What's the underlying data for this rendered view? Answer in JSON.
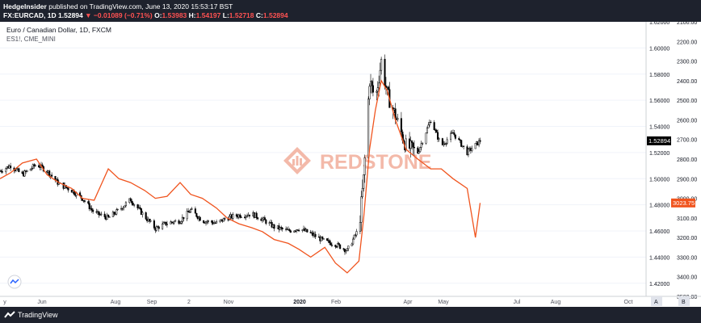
{
  "header": {
    "author": "HedgeInsider",
    "published_text": "published on TradingView.com, June 13, 2020 15:53:17 BST",
    "symbol": "FX:EURCAD, 1D",
    "last": "1.52894",
    "change_arrow": "▼",
    "change": "−0.01089 (−0.71%)",
    "open_label": "O:",
    "open": "1.53983",
    "high_label": "H:",
    "high": "1.54197",
    "low_label": "L:",
    "low": "1.52718",
    "close_label": "C:",
    "close": "1.52894"
  },
  "legend": {
    "title": "Euro / Canadian Dollar, 1D, FXCM",
    "compare": "ES1!, CME_MINI"
  },
  "watermark": {
    "text": "REDSTONE"
  },
  "footer": {
    "brand": "TradingView"
  },
  "colors": {
    "candle": "#000000",
    "compare_line": "#f0541e",
    "price_badge": "#000000",
    "compare_badge": "#f0541e",
    "header_bg": "#1e222d"
  },
  "chart_data": {
    "type": "line",
    "title": "Euro / Canadian Dollar, 1D, FXCM",
    "x_ticks": [
      "y",
      "Jun",
      "Aug",
      "Sep",
      "2",
      "Nov",
      "2020",
      "Feb",
      "Apr",
      "May",
      "Jul",
      "Aug",
      "Oct"
    ],
    "y_left_ticks": [
      "1.62000",
      "1.60000",
      "1.58000",
      "1.56000",
      "1.54000",
      "1.52000",
      "1.50000",
      "1.48000",
      "1.46000",
      "1.44000",
      "1.42000"
    ],
    "y_left_range": [
      1.41,
      1.62
    ],
    "y_right_ticks": [
      "2100.00",
      "2200.00",
      "2300.00",
      "2400.00",
      "2500.00",
      "2600.00",
      "2700.00",
      "2800.00",
      "2900.00",
      "3000.00",
      "3100.00",
      "3200.00",
      "3300.00",
      "3400.00",
      "3500.00"
    ],
    "y_right_range": [
      2100,
      3500
    ],
    "y_right_inverted": true,
    "price_label": "1.52894",
    "compare_label": "3023.75",
    "series": [
      {
        "name": "EURCAD",
        "kind": "candlestick-close",
        "x": [
          "2019-05-01",
          "2019-05-10",
          "2019-05-20",
          "2019-06-01",
          "2019-06-10",
          "2019-06-20",
          "2019-07-01",
          "2019-07-10",
          "2019-07-20",
          "2019-08-01",
          "2019-08-10",
          "2019-08-20",
          "2019-09-01",
          "2019-09-10",
          "2019-09-20",
          "2019-10-01",
          "2019-10-10",
          "2019-10-20",
          "2019-11-01",
          "2019-11-10",
          "2019-11-20",
          "2019-12-01",
          "2019-12-10",
          "2019-12-20",
          "2020-01-01",
          "2020-01-10",
          "2020-01-20",
          "2020-02-01",
          "2020-02-10",
          "2020-02-20",
          "2020-03-01",
          "2020-03-05",
          "2020-03-10",
          "2020-03-15",
          "2020-03-20",
          "2020-03-25",
          "2020-04-01",
          "2020-04-10",
          "2020-04-20",
          "2020-05-01",
          "2020-05-10",
          "2020-05-20",
          "2020-06-01",
          "2020-06-12"
        ],
        "values": [
          1.506,
          1.51,
          1.503,
          1.511,
          1.506,
          1.496,
          1.491,
          1.485,
          1.474,
          1.47,
          1.476,
          1.484,
          1.471,
          1.462,
          1.466,
          1.468,
          1.476,
          1.468,
          1.466,
          1.47,
          1.472,
          1.473,
          1.469,
          1.463,
          1.46,
          1.462,
          1.458,
          1.452,
          1.45,
          1.445,
          1.462,
          1.5,
          1.575,
          1.56,
          1.59,
          1.565,
          1.548,
          1.525,
          1.52,
          1.545,
          1.525,
          1.535,
          1.52,
          1.529
        ]
      },
      {
        "name": "ES1!",
        "kind": "line",
        "x": [
          "2019-05-01",
          "2019-05-10",
          "2019-05-20",
          "2019-06-01",
          "2019-06-10",
          "2019-06-20",
          "2019-07-01",
          "2019-07-10",
          "2019-07-20",
          "2019-08-01",
          "2019-08-10",
          "2019-08-20",
          "2019-09-01",
          "2019-09-10",
          "2019-09-20",
          "2019-10-01",
          "2019-10-10",
          "2019-10-20",
          "2019-11-01",
          "2019-11-10",
          "2019-11-20",
          "2019-12-01",
          "2019-12-10",
          "2019-12-20",
          "2020-01-01",
          "2020-01-10",
          "2020-01-20",
          "2020-02-01",
          "2020-02-10",
          "2020-02-20",
          "2020-03-01",
          "2020-03-05",
          "2020-03-10",
          "2020-03-15",
          "2020-03-20",
          "2020-03-25",
          "2020-04-01",
          "2020-04-10",
          "2020-04-20",
          "2020-05-01",
          "2020-05-10",
          "2020-05-20",
          "2020-06-01",
          "2020-06-08",
          "2020-06-12"
        ],
        "values": [
          2900,
          2870,
          2820,
          2800,
          2880,
          2920,
          2950,
          3000,
          3010,
          2850,
          2900,
          2920,
          2960,
          3000,
          2990,
          2920,
          2980,
          3000,
          3050,
          3100,
          3130,
          3150,
          3170,
          3210,
          3230,
          3260,
          3300,
          3250,
          3330,
          3380,
          3320,
          3100,
          2750,
          2550,
          2400,
          2450,
          2600,
          2750,
          2800,
          2850,
          2850,
          2900,
          2950,
          3200,
          3023.75
        ]
      }
    ]
  }
}
